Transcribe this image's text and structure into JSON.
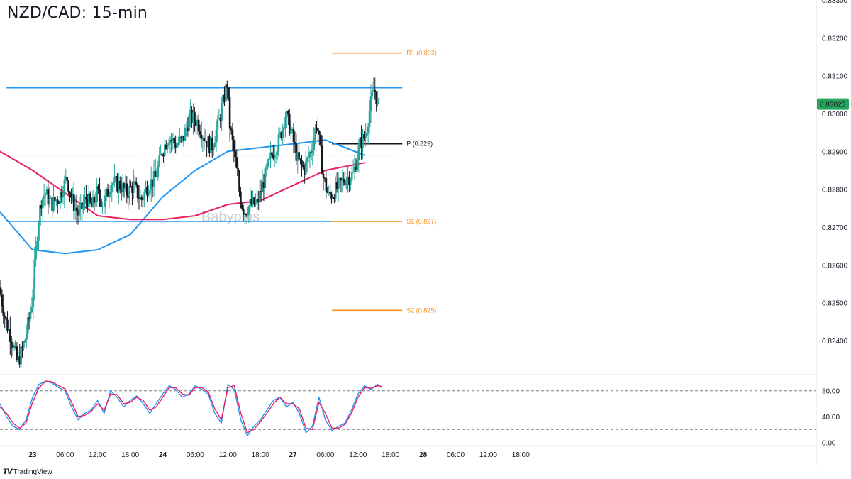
{
  "title": "NZD/CAD: 15-min",
  "watermark": "Babypips",
  "branding": "TradingView",
  "chart_data": [
    {
      "type": "candlestick",
      "title": "NZD/CAD: 15-min",
      "ylim": [
        0.8231,
        0.833
      ],
      "y_ticks": [
        "0.83300",
        "0.83200",
        "0.83100",
        "0.83000",
        "0.82900",
        "0.82800",
        "0.82700",
        "0.82600",
        "0.82500",
        "0.82400"
      ],
      "x_ticks": [
        {
          "label": "23",
          "bold": true
        },
        {
          "label": "06:00"
        },
        {
          "label": "12:00"
        },
        {
          "label": "18:00"
        },
        {
          "label": "24",
          "bold": true
        },
        {
          "label": "06:00"
        },
        {
          "label": "12:00"
        },
        {
          "label": "18:00"
        },
        {
          "label": "27",
          "bold": true
        },
        {
          "label": "06:00"
        },
        {
          "label": "12:00"
        },
        {
          "label": "18:00"
        },
        {
          "label": "28",
          "bold": true
        },
        {
          "label": "06:00"
        },
        {
          "label": "12:00"
        },
        {
          "label": "18:00"
        }
      ],
      "price_path": [
        [
          22.75,
          0.8254
        ],
        [
          22.8,
          0.8245
        ],
        [
          22.85,
          0.824
        ],
        [
          22.89,
          0.8234
        ],
        [
          22.94,
          0.8239
        ],
        [
          22.98,
          0.8246
        ],
        [
          23.0,
          0.825
        ],
        [
          23.04,
          0.8268
        ],
        [
          23.07,
          0.8277
        ],
        [
          23.1,
          0.8279
        ],
        [
          23.15,
          0.8276
        ],
        [
          23.21,
          0.8278
        ],
        [
          23.27,
          0.8283
        ],
        [
          23.31,
          0.8277
        ],
        [
          23.36,
          0.8273
        ],
        [
          23.42,
          0.8278
        ],
        [
          23.46,
          0.8275
        ],
        [
          23.5,
          0.8279
        ],
        [
          23.55,
          0.8276
        ],
        [
          23.61,
          0.8282
        ],
        [
          23.68,
          0.8281
        ],
        [
          23.73,
          0.8279
        ],
        [
          23.78,
          0.8281
        ],
        [
          23.84,
          0.8277
        ],
        [
          23.89,
          0.8281
        ],
        [
          23.95,
          0.8283
        ],
        [
          24.0,
          0.829
        ],
        [
          24.05,
          0.8294
        ],
        [
          24.1,
          0.8292
        ],
        [
          24.16,
          0.8293
        ],
        [
          24.21,
          0.8299
        ],
        [
          24.27,
          0.8298
        ],
        [
          24.32,
          0.8294
        ],
        [
          24.38,
          0.8291
        ],
        [
          24.43,
          0.8297
        ],
        [
          24.47,
          0.8303
        ],
        [
          24.5,
          0.8308
        ],
        [
          24.52,
          0.8297
        ],
        [
          24.56,
          0.8288
        ],
        [
          24.6,
          0.8278
        ],
        [
          24.63,
          0.8274
        ],
        [
          24.68,
          0.8276
        ],
        [
          24.73,
          0.8276
        ],
        [
          24.78,
          0.8282
        ],
        [
          24.84,
          0.8289
        ],
        [
          24.9,
          0.8293
        ],
        [
          24.95,
          0.83
        ],
        [
          25.0,
          0.8294
        ],
        [
          25.04,
          0.8288
        ],
        [
          25.09,
          0.8285
        ],
        [
          25.15,
          0.8291
        ],
        [
          25.19,
          0.8298
        ],
        [
          25.24,
          0.8283
        ],
        [
          25.28,
          0.8278
        ],
        [
          25.34,
          0.828
        ],
        [
          25.41,
          0.8283
        ],
        [
          25.47,
          0.8284
        ],
        [
          25.52,
          0.8292
        ],
        [
          25.56,
          0.8294
        ],
        [
          25.6,
          0.8302
        ],
        [
          25.63,
          0.8307
        ],
        [
          25.66,
          0.8302
        ]
      ],
      "series": [
        {
          "name": "",
          "color": "#2196f3",
          "points": [
            [
              22.75,
              0.8274
            ],
            [
              23.0,
              0.8264
            ],
            [
              23.25,
              0.8263
            ],
            [
              23.5,
              0.8264
            ],
            [
              23.75,
              0.8268
            ],
            [
              24.0,
              0.8278
            ],
            [
              24.25,
              0.8285
            ],
            [
              24.5,
              0.829
            ],
            [
              24.75,
              0.8291
            ],
            [
              25.0,
              0.8292
            ],
            [
              25.25,
              0.8293
            ],
            [
              25.55,
              0.8289
            ]
          ]
        },
        {
          "name": "",
          "color": "#e91e63",
          "points": [
            [
              22.75,
              0.829
            ],
            [
              23.0,
              0.8285
            ],
            [
              23.25,
              0.8279
            ],
            [
              23.5,
              0.8273
            ],
            [
              23.75,
              0.8272
            ],
            [
              24.0,
              0.8272
            ],
            [
              24.25,
              0.8273
            ],
            [
              24.5,
              0.8276
            ],
            [
              24.75,
              0.8277
            ],
            [
              25.0,
              0.8281
            ],
            [
              25.25,
              0.8285
            ],
            [
              25.55,
              0.8287
            ]
          ]
        }
      ],
      "horizontal_lines": [
        {
          "price": 0.83068,
          "color": "#2196f3",
          "from": 22.8,
          "to": 25.84,
          "label": ""
        },
        {
          "price": 0.82715,
          "color": "#2196f3",
          "from": 22.8,
          "to": 25.3,
          "label": ""
        },
        {
          "price": 0.8316,
          "color": "#f7931e",
          "from": 25.3,
          "to": 25.84,
          "label": "R1 (0.832)"
        },
        {
          "price": 0.8292,
          "color": "#131722",
          "from": 25.3,
          "to": 25.84,
          "label": "P (0.829)"
        },
        {
          "price": 0.82715,
          "color": "#f7931e",
          "from": 25.3,
          "to": 25.84,
          "label": "S1 (0.827)"
        },
        {
          "price": 0.8248,
          "color": "#f7931e",
          "from": 25.3,
          "to": 25.84,
          "label": "S2 (0.825)"
        }
      ],
      "dashed_price_line": 0.8289,
      "last_price": {
        "value": "0.83025",
        "color": "#26a65b"
      }
    },
    {
      "type": "line",
      "title": "",
      "ylim": [
        -5,
        105
      ],
      "y_ticks": [
        "80.00",
        "40.00",
        "0.00"
      ],
      "reference_lines": [
        80,
        20
      ],
      "series": [
        {
          "name": "",
          "color": "#2196f3",
          "points": [
            [
              22.75,
              60
            ],
            [
              22.8,
              40
            ],
            [
              22.85,
              25
            ],
            [
              22.9,
              20
            ],
            [
              22.95,
              35
            ],
            [
              23.0,
              70
            ],
            [
              23.05,
              90
            ],
            [
              23.1,
              95
            ],
            [
              23.15,
              92
            ],
            [
              23.2,
              85
            ],
            [
              23.25,
              80
            ],
            [
              23.3,
              55
            ],
            [
              23.35,
              35
            ],
            [
              23.4,
              45
            ],
            [
              23.45,
              50
            ],
            [
              23.5,
              65
            ],
            [
              23.55,
              45
            ],
            [
              23.6,
              80
            ],
            [
              23.65,
              70
            ],
            [
              23.7,
              55
            ],
            [
              23.75,
              65
            ],
            [
              23.8,
              72
            ],
            [
              23.85,
              60
            ],
            [
              23.9,
              45
            ],
            [
              23.95,
              60
            ],
            [
              24.0,
              75
            ],
            [
              24.05,
              88
            ],
            [
              24.1,
              82
            ],
            [
              24.15,
              70
            ],
            [
              24.2,
              75
            ],
            [
              24.25,
              88
            ],
            [
              24.3,
              82
            ],
            [
              24.35,
              75
            ],
            [
              24.4,
              45
            ],
            [
              24.45,
              30
            ],
            [
              24.5,
              90
            ],
            [
              24.55,
              82
            ],
            [
              24.6,
              35
            ],
            [
              24.65,
              10
            ],
            [
              24.7,
              25
            ],
            [
              24.75,
              35
            ],
            [
              24.8,
              50
            ],
            [
              24.85,
              65
            ],
            [
              24.9,
              70
            ],
            [
              24.95,
              55
            ],
            [
              25.0,
              62
            ],
            [
              25.05,
              45
            ],
            [
              25.1,
              15
            ],
            [
              25.15,
              25
            ],
            [
              25.2,
              70
            ],
            [
              25.25,
              35
            ],
            [
              25.3,
              18
            ],
            [
              25.35,
              25
            ],
            [
              25.4,
              30
            ],
            [
              25.45,
              50
            ],
            [
              25.5,
              75
            ],
            [
              25.55,
              88
            ],
            [
              25.6,
              82
            ],
            [
              25.65,
              90
            ],
            [
              25.68,
              85
            ]
          ]
        },
        {
          "name": "",
          "color": "#e91e63",
          "points": [
            [
              22.75,
              55
            ],
            [
              22.8,
              45
            ],
            [
              22.85,
              30
            ],
            [
              22.9,
              22
            ],
            [
              22.95,
              30
            ],
            [
              23.0,
              62
            ],
            [
              23.05,
              85
            ],
            [
              23.1,
              95
            ],
            [
              23.15,
              94
            ],
            [
              23.2,
              88
            ],
            [
              23.25,
              83
            ],
            [
              23.3,
              62
            ],
            [
              23.35,
              40
            ],
            [
              23.4,
              42
            ],
            [
              23.45,
              48
            ],
            [
              23.5,
              60
            ],
            [
              23.55,
              50
            ],
            [
              23.6,
              75
            ],
            [
              23.65,
              74
            ],
            [
              23.7,
              60
            ],
            [
              23.75,
              62
            ],
            [
              23.8,
              70
            ],
            [
              23.85,
              65
            ],
            [
              23.9,
              50
            ],
            [
              23.95,
              55
            ],
            [
              24.0,
              70
            ],
            [
              24.05,
              85
            ],
            [
              24.1,
              85
            ],
            [
              24.15,
              75
            ],
            [
              24.2,
              73
            ],
            [
              24.25,
              85
            ],
            [
              24.3,
              85
            ],
            [
              24.35,
              78
            ],
            [
              24.4,
              52
            ],
            [
              24.45,
              35
            ],
            [
              24.5,
              85
            ],
            [
              24.55,
              88
            ],
            [
              24.6,
              45
            ],
            [
              24.65,
              15
            ],
            [
              24.7,
              20
            ],
            [
              24.75,
              32
            ],
            [
              24.8,
              45
            ],
            [
              24.85,
              60
            ],
            [
              24.9,
              70
            ],
            [
              24.95,
              60
            ],
            [
              25.0,
              60
            ],
            [
              25.05,
              52
            ],
            [
              25.1,
              22
            ],
            [
              25.15,
              20
            ],
            [
              25.2,
              62
            ],
            [
              25.25,
              45
            ],
            [
              25.3,
              22
            ],
            [
              25.35,
              22
            ],
            [
              25.4,
              28
            ],
            [
              25.45,
              45
            ],
            [
              25.5,
              70
            ],
            [
              25.55,
              85
            ],
            [
              25.6,
              84
            ],
            [
              25.65,
              88
            ],
            [
              25.68,
              87
            ]
          ]
        }
      ]
    }
  ]
}
